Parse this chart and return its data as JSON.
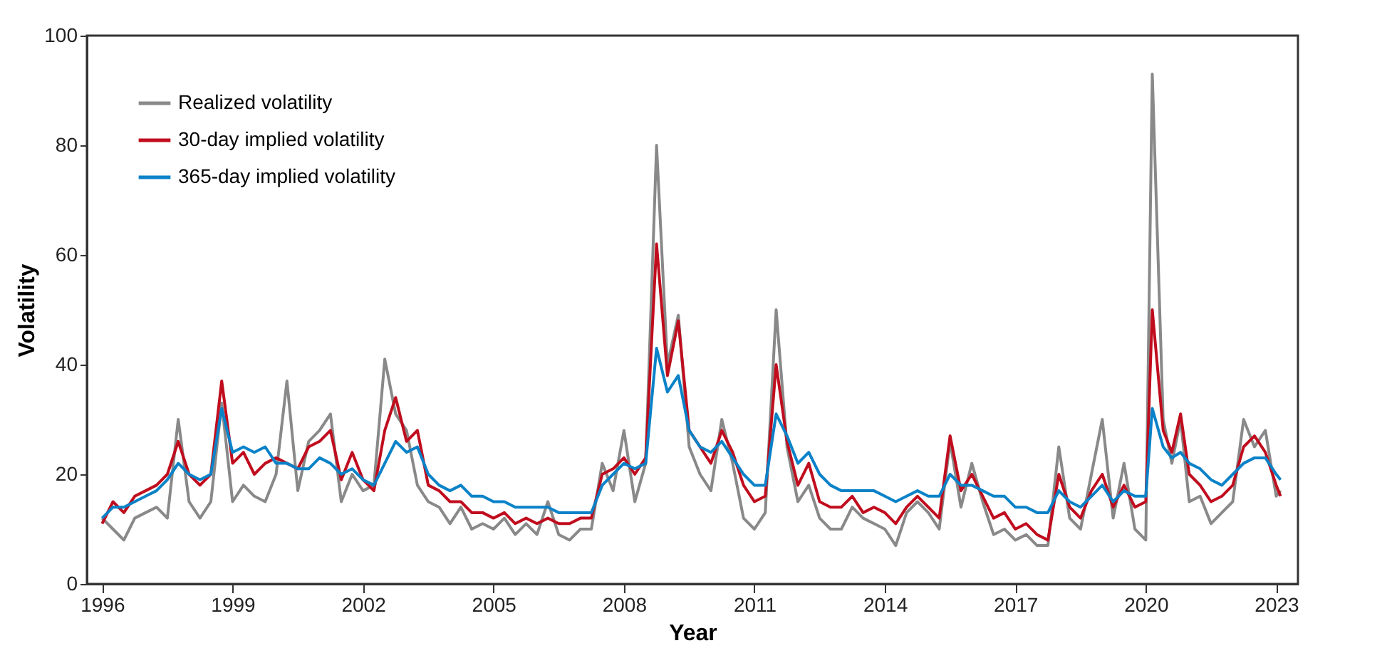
{
  "chart_data": {
    "type": "line",
    "xlabel": "Year",
    "ylabel": "Volatility",
    "x": [
      1996.0,
      1996.25,
      1996.5,
      1996.75,
      1997.0,
      1997.25,
      1997.5,
      1997.75,
      1998.0,
      1998.25,
      1998.5,
      1998.75,
      1999.0,
      1999.25,
      1999.5,
      1999.75,
      2000.0,
      2000.25,
      2000.5,
      2000.75,
      2001.0,
      2001.25,
      2001.5,
      2001.75,
      2002.0,
      2002.25,
      2002.5,
      2002.75,
      2003.0,
      2003.25,
      2003.5,
      2003.75,
      2004.0,
      2004.25,
      2004.5,
      2004.75,
      2005.0,
      2005.25,
      2005.5,
      2005.75,
      2006.0,
      2006.25,
      2006.5,
      2006.75,
      2007.0,
      2007.25,
      2007.5,
      2007.75,
      2008.0,
      2008.25,
      2008.5,
      2008.75,
      2009.0,
      2009.25,
      2009.5,
      2009.75,
      2010.0,
      2010.25,
      2010.5,
      2010.75,
      2011.0,
      2011.25,
      2011.5,
      2011.75,
      2012.0,
      2012.25,
      2012.5,
      2012.75,
      2013.0,
      2013.25,
      2013.5,
      2013.75,
      2014.0,
      2014.25,
      2014.5,
      2014.75,
      2015.0,
      2015.25,
      2015.5,
      2015.75,
      2016.0,
      2016.25,
      2016.5,
      2016.75,
      2017.0,
      2017.25,
      2017.5,
      2017.75,
      2018.0,
      2018.25,
      2018.5,
      2018.75,
      2019.0,
      2019.25,
      2019.5,
      2019.75,
      2020.0,
      2020.15,
      2020.4,
      2020.6,
      2020.8,
      2021.0,
      2021.25,
      2021.5,
      2021.75,
      2022.0,
      2022.25,
      2022.5,
      2022.75,
      2023.0,
      2023.1
    ],
    "series": [
      {
        "name": "Realized volatility",
        "color": "#898989",
        "values": [
          12,
          10,
          8,
          12,
          13,
          14,
          12,
          30,
          15,
          12,
          15,
          33,
          15,
          18,
          16,
          15,
          20,
          37,
          17,
          26,
          28,
          31,
          15,
          20,
          17,
          18,
          41,
          31,
          28,
          18,
          15,
          14,
          11,
          14,
          10,
          11,
          10,
          12,
          9,
          11,
          9,
          15,
          9,
          8,
          10,
          10,
          22,
          17,
          28,
          15,
          22,
          80,
          40,
          49,
          25,
          20,
          17,
          30,
          22,
          12,
          10,
          13,
          50,
          25,
          15,
          18,
          12,
          10,
          10,
          14,
          12,
          11,
          10,
          7,
          13,
          15,
          13,
          10,
          26,
          14,
          22,
          15,
          9,
          10,
          8,
          9,
          7,
          7,
          25,
          12,
          10,
          20,
          30,
          12,
          22,
          10,
          8,
          93,
          30,
          22,
          30,
          15,
          16,
          11,
          13,
          15,
          30,
          25,
          28,
          16,
          17
        ]
      },
      {
        "name": "30-day implied volatility",
        "color": "#c00d1e",
        "values": [
          11,
          15,
          13,
          16,
          17,
          18,
          20,
          26,
          20,
          18,
          20,
          37,
          22,
          24,
          20,
          22,
          23,
          22,
          21,
          25,
          26,
          28,
          19,
          24,
          19,
          17,
          28,
          34,
          26,
          28,
          18,
          17,
          15,
          15,
          13,
          13,
          12,
          13,
          11,
          12,
          11,
          12,
          11,
          11,
          12,
          12,
          20,
          21,
          23,
          20,
          23,
          62,
          38,
          48,
          28,
          25,
          22,
          28,
          24,
          18,
          15,
          16,
          40,
          26,
          18,
          22,
          15,
          14,
          14,
          16,
          13,
          14,
          13,
          11,
          14,
          16,
          14,
          12,
          27,
          17,
          20,
          16,
          12,
          13,
          10,
          11,
          9,
          8,
          20,
          14,
          12,
          17,
          20,
          14,
          18,
          14,
          15,
          50,
          28,
          24,
          31,
          20,
          18,
          15,
          16,
          18,
          25,
          27,
          24,
          18,
          16
        ]
      },
      {
        "name": "365-day implied volatility",
        "color": "#0a82c8",
        "values": [
          12,
          14,
          14,
          15,
          16,
          17,
          19,
          22,
          20,
          19,
          20,
          32,
          24,
          25,
          24,
          25,
          22,
          22,
          21,
          21,
          23,
          22,
          20,
          21,
          19,
          18,
          22,
          26,
          24,
          25,
          20,
          18,
          17,
          18,
          16,
          16,
          15,
          15,
          14,
          14,
          14,
          14,
          13,
          13,
          13,
          13,
          18,
          20,
          22,
          21,
          22,
          43,
          35,
          38,
          28,
          25,
          24,
          26,
          23,
          20,
          18,
          18,
          31,
          27,
          22,
          24,
          20,
          18,
          17,
          17,
          17,
          17,
          16,
          15,
          16,
          17,
          16,
          16,
          20,
          18,
          18,
          17,
          16,
          16,
          14,
          14,
          13,
          13,
          17,
          15,
          14,
          16,
          18,
          15,
          17,
          16,
          16,
          32,
          25,
          23,
          24,
          22,
          21,
          19,
          18,
          20,
          22,
          23,
          23,
          20,
          19
        ]
      }
    ],
    "xlim": [
      1995.65,
      2023.5
    ],
    "ylim": [
      0,
      100
    ],
    "xticks": [
      1996,
      1999,
      2002,
      2005,
      2008,
      2011,
      2014,
      2017,
      2020,
      2023
    ],
    "yticks": [
      0,
      20,
      40,
      60,
      80,
      100
    ],
    "grid": false,
    "legend": "top left",
    "line_style": "solid",
    "marker": "none"
  }
}
